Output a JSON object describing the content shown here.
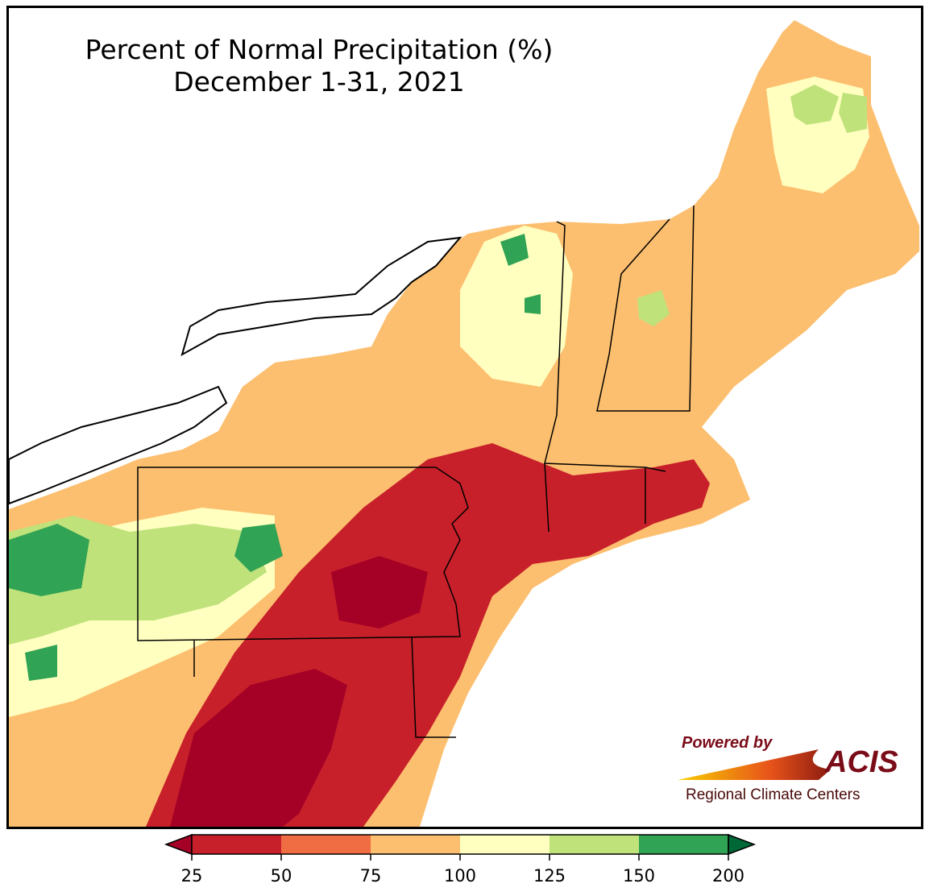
{
  "title": {
    "line1": "Percent of Normal Precipitation (%)",
    "line2": "December 1-31, 2021"
  },
  "logo": {
    "powered_by": "Powered by",
    "name": "ACIS",
    "subtitle": "Regional Climate Centers"
  },
  "colorbar": {
    "ticks": [
      "25",
      "50",
      "75",
      "100",
      "125",
      "150",
      "200"
    ],
    "colors": [
      "#a50026",
      "#c8202a",
      "#f06c42",
      "#fcbf6f",
      "#ffffbf",
      "#bfe27b",
      "#31a354",
      "#006837"
    ]
  },
  "colors": {
    "water_outline": "#000000",
    "county_lines": "#9e9e9e"
  }
}
